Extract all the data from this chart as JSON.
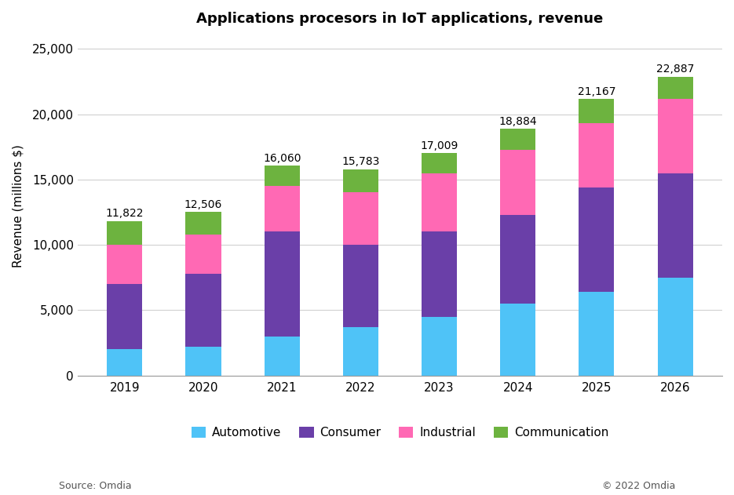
{
  "title": "Applications procesors in IoT applications, revenue",
  "ylabel": "Revenue (millions $)",
  "years": [
    2019,
    2020,
    2021,
    2022,
    2023,
    2024,
    2025,
    2026
  ],
  "totals": [
    11822,
    12506,
    16060,
    15783,
    17009,
    18884,
    21167,
    22887
  ],
  "automotive": [
    2000,
    2200,
    3000,
    3700,
    4500,
    5500,
    6400,
    7500
  ],
  "consumer": [
    5000,
    5600,
    8000,
    6300,
    6500,
    6800,
    8000,
    8000
  ],
  "industrial": [
    3000,
    3000,
    3500,
    4000,
    4500,
    5000,
    4900,
    5700
  ],
  "colors": {
    "automotive": "#4FC3F7",
    "consumer": "#6A3FA8",
    "industrial": "#FF69B4",
    "communication": "#6DB33F"
  },
  "ylim": [
    0,
    26000
  ],
  "yticks": [
    0,
    5000,
    10000,
    15000,
    20000,
    25000
  ],
  "ytick_labels": [
    "0",
    "5,000",
    "10,000",
    "15,000",
    "20,000",
    "25,000"
  ],
  "source_text": "Source: Omdia",
  "copyright_text": "© 2022 Omdia",
  "background_color": "#FFFFFF",
  "legend_labels": [
    "Automotive",
    "Consumer",
    "Industrial",
    "Communication"
  ],
  "bar_width": 0.45
}
